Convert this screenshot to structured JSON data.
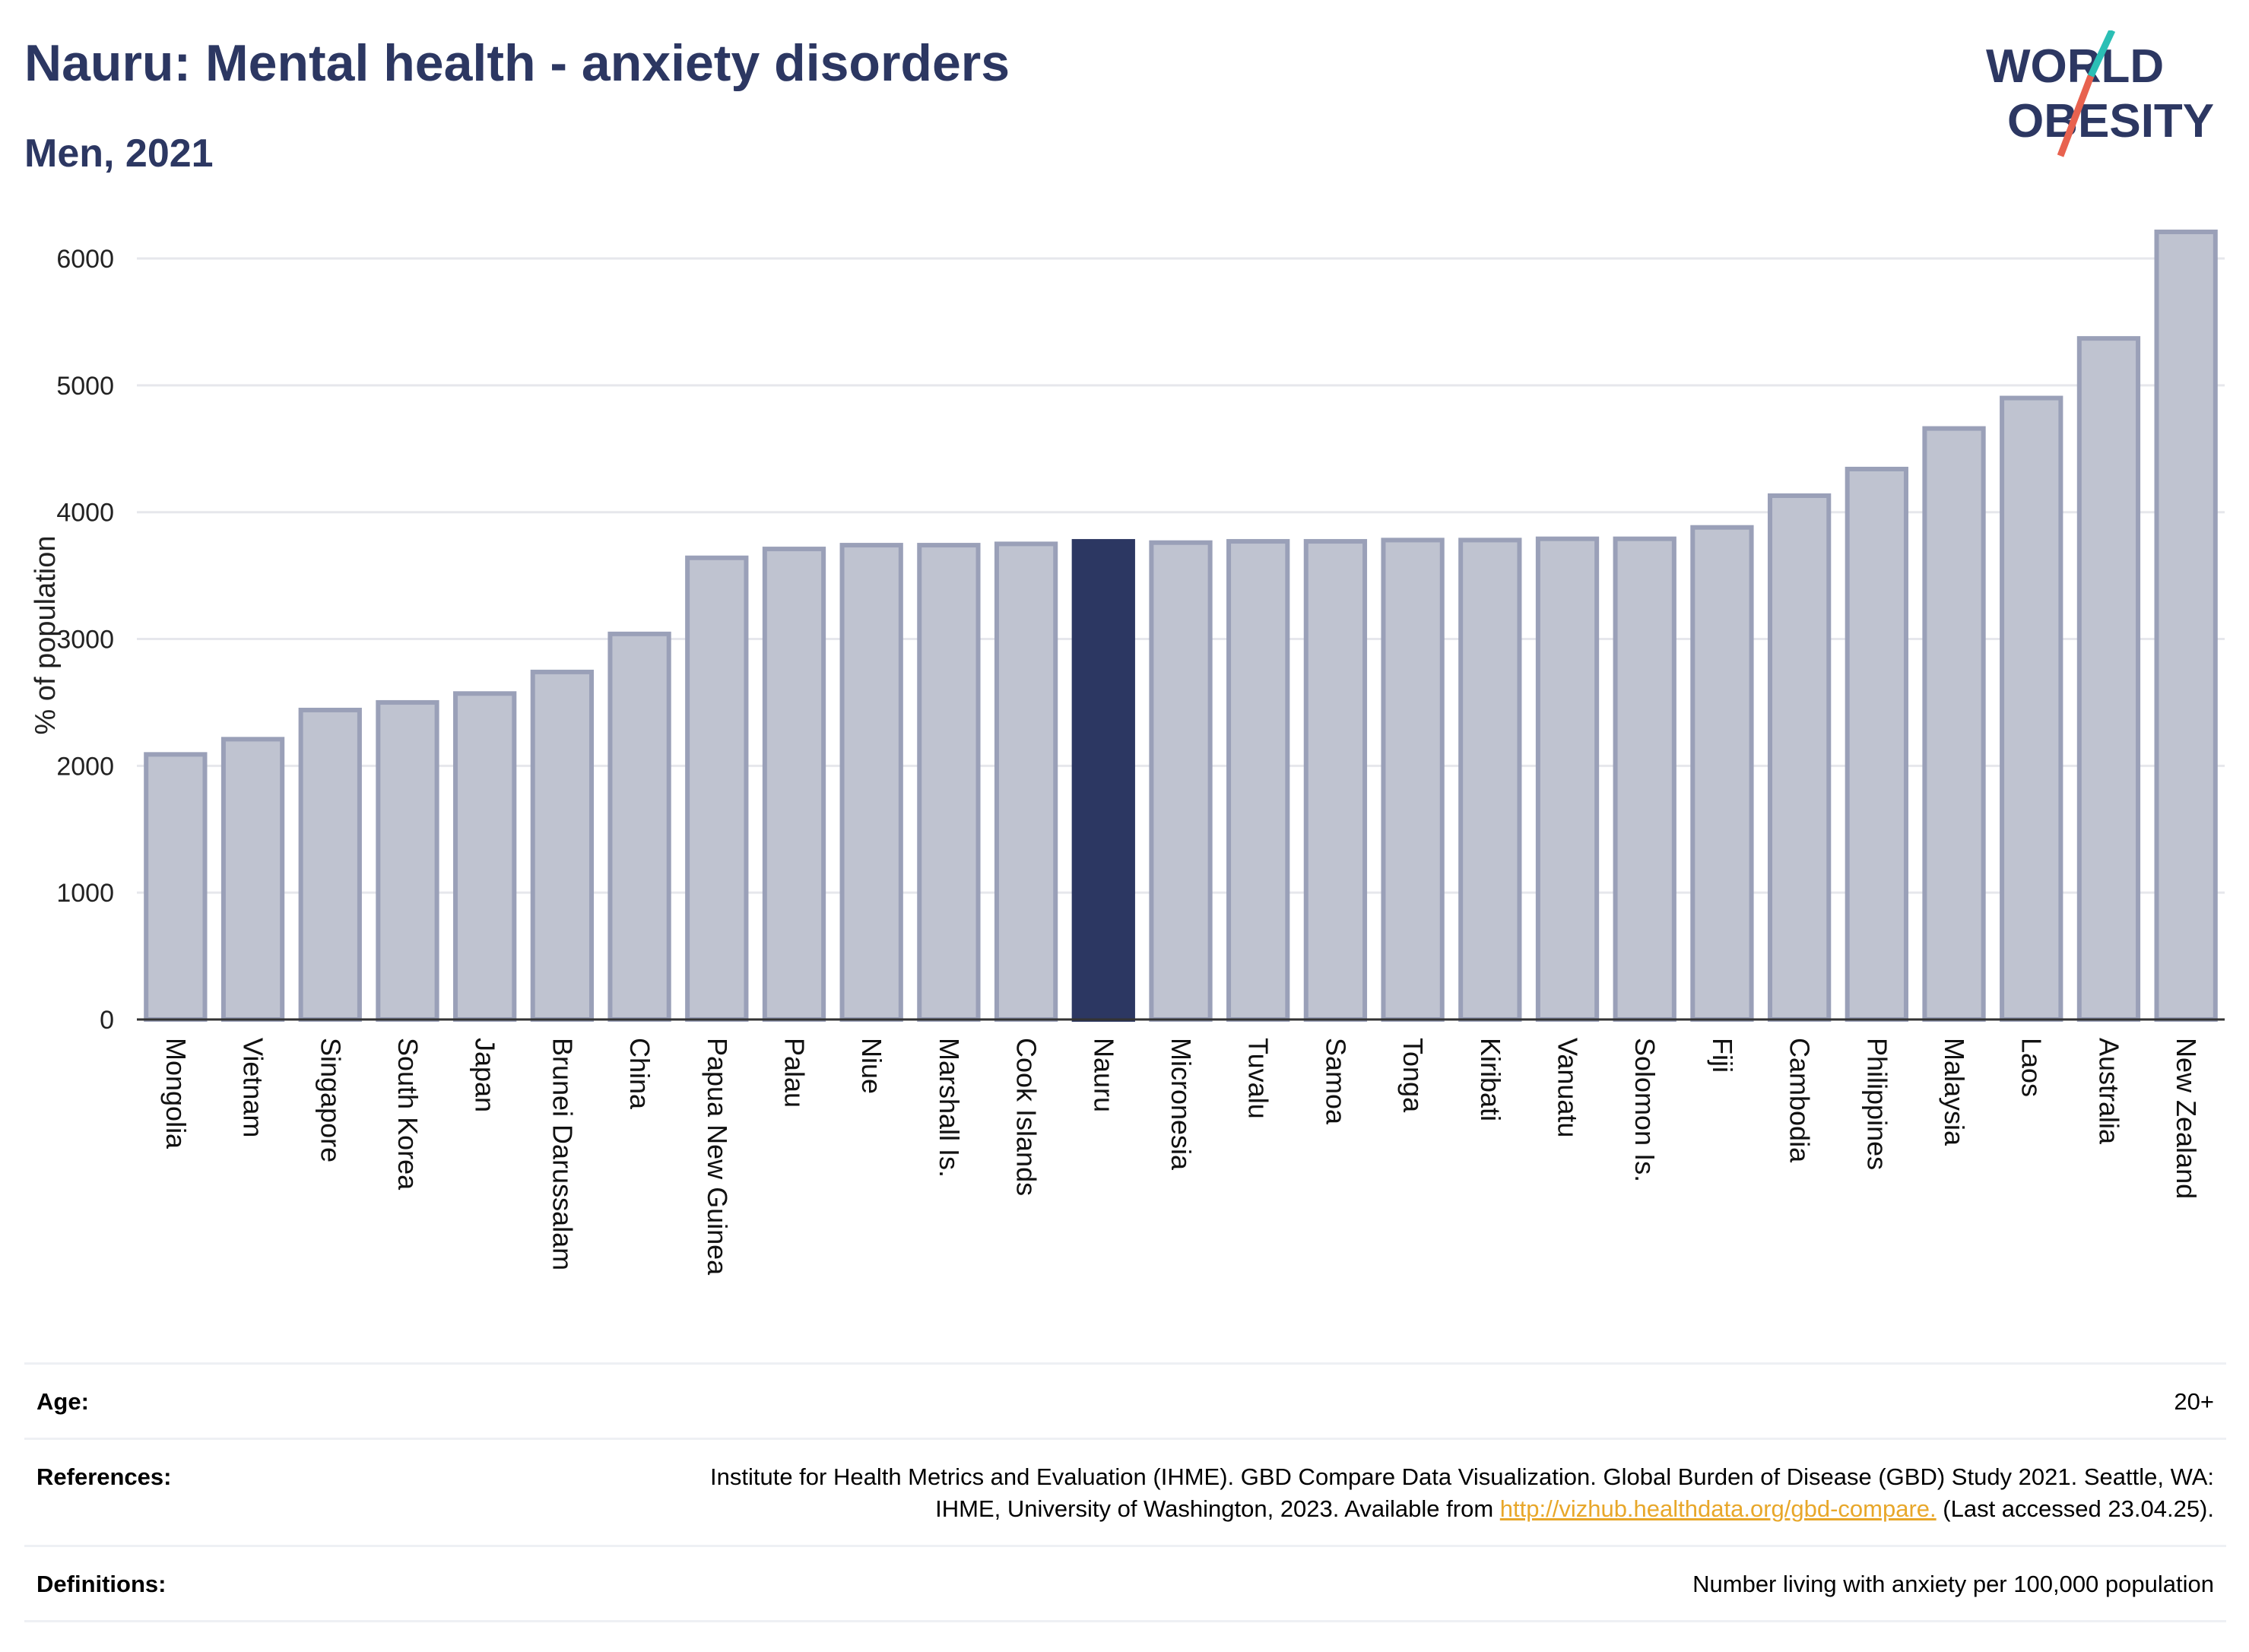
{
  "header": {
    "title": "Nauru: Mental health - anxiety disorders",
    "subtitle": "Men, 2021"
  },
  "logo": {
    "line1": "WORLD",
    "line2": "OBESITY",
    "colors": {
      "text": "#2c3762",
      "slash_top": "#2bbfb5",
      "slash_bottom": "#e8624f"
    }
  },
  "colors": {
    "bar_fill": "#bfc3d0",
    "bar_stroke": "#9aa0b8",
    "highlight_fill": "#2c3762",
    "grid": "#e6e7ec",
    "axis": "#333333"
  },
  "chart_data": {
    "type": "bar",
    "title": "Nauru: Mental health - anxiety disorders",
    "subtitle": "Men, 2021",
    "xlabel": "",
    "ylabel": "% of population",
    "ylim": [
      0,
      6300
    ],
    "yticks": [
      0,
      1000,
      2000,
      3000,
      4000,
      5000,
      6000
    ],
    "grid": true,
    "highlight": "Nauru",
    "categories": [
      "Mongolia",
      "Vietnam",
      "Singapore",
      "South Korea",
      "Japan",
      "Brunei Darussalam",
      "China",
      "Papua New Guinea",
      "Palau",
      "Niue",
      "Marshall Is.",
      "Cook Islands",
      "Nauru",
      "Micronesia",
      "Tuvalu",
      "Samoa",
      "Tonga",
      "Kiribati",
      "Vanuatu",
      "Solomon Is.",
      "Fiji",
      "Cambodia",
      "Philippines",
      "Malaysia",
      "Laos",
      "Australia",
      "New Zealand"
    ],
    "values": [
      2090,
      2210,
      2440,
      2500,
      2570,
      2740,
      3040,
      3640,
      3710,
      3740,
      3740,
      3750,
      3770,
      3760,
      3770,
      3770,
      3780,
      3780,
      3790,
      3790,
      3880,
      4130,
      4340,
      4660,
      4900,
      5370,
      6210
    ]
  },
  "meta": {
    "age_label": "Age:",
    "age_value": "20+",
    "references_label": "References:",
    "references_text": "Institute for Health Metrics and Evaluation (IHME). GBD Compare Data Visualization. Global Burden of Disease (GBD) Study 2021. Seattle, WA: IHME, University of Washington, 2023. Available from",
    "references_link": "http://vizhub.healthdata.org/gbd-compare.",
    "references_suffix": "(Last accessed 23.04.25).",
    "definitions_label": "Definitions:",
    "definitions_value": "Number living with anxiety per 100,000 population"
  }
}
